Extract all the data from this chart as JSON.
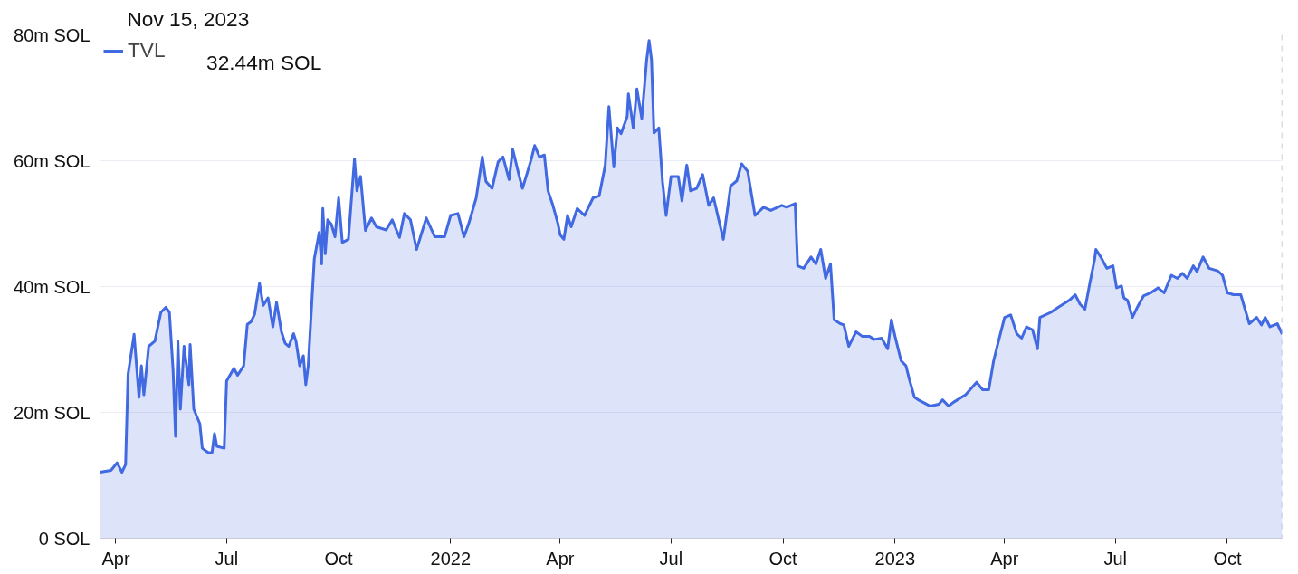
{
  "chart_data": {
    "type": "area",
    "annotations": [
      "Nov 15, 2023",
      "32.44m SOL"
    ],
    "x": [
      "2021-03-19",
      "2021-03-28",
      "2021-04-02",
      "2021-04-06",
      "2021-04-09",
      "2021-04-11",
      "2021-04-16",
      "2021-04-20",
      "2021-04-22",
      "2021-04-24",
      "2021-04-28",
      "2021-05-03",
      "2021-05-08",
      "2021-05-12",
      "2021-05-15",
      "2021-05-18",
      "2021-05-20",
      "2021-05-22",
      "2021-05-24",
      "2021-05-27",
      "2021-05-31",
      "2021-06-01",
      "2021-06-04",
      "2021-06-09",
      "2021-06-11",
      "2021-06-16",
      "2021-06-19",
      "2021-06-21",
      "2021-06-23",
      "2021-06-29",
      "2021-07-01",
      "2021-07-07",
      "2021-07-10",
      "2021-07-15",
      "2021-07-18",
      "2021-07-21",
      "2021-07-24",
      "2021-07-28",
      "2021-07-31",
      "2021-08-04",
      "2021-08-08",
      "2021-08-11",
      "2021-08-15",
      "2021-08-18",
      "2021-08-21",
      "2021-08-25",
      "2021-08-27",
      "2021-08-30",
      "2021-09-02",
      "2021-09-04",
      "2021-09-06",
      "2021-09-11",
      "2021-09-15",
      "2021-09-17",
      "2021-09-18",
      "2021-09-20",
      "2021-09-22",
      "2021-09-25",
      "2021-09-28",
      "2021-10-01",
      "2021-10-04",
      "2021-10-09",
      "2021-10-14",
      "2021-10-16",
      "2021-10-19",
      "2021-10-23",
      "2021-10-28",
      "2021-11-01",
      "2021-11-09",
      "2021-11-14",
      "2021-11-20",
      "2021-11-24",
      "2021-11-29",
      "2021-12-04",
      "2021-12-12",
      "2021-12-19",
      "2021-12-27",
      "2022-01-01",
      "2022-01-07",
      "2022-01-12",
      "2022-01-16",
      "2022-01-22",
      "2022-01-27",
      "2022-01-30",
      "2022-02-04",
      "2022-02-09",
      "2022-02-13",
      "2022-02-18",
      "2022-02-21",
      "2022-02-26",
      "2022-03-01",
      "2022-03-04",
      "2022-03-08",
      "2022-03-11",
      "2022-03-15",
      "2022-03-19",
      "2022-03-22",
      "2022-03-26",
      "2022-03-30",
      "2022-04-01",
      "2022-04-04",
      "2022-04-07",
      "2022-04-10",
      "2022-04-15",
      "2022-04-21",
      "2022-04-28",
      "2022-05-03",
      "2022-05-08",
      "2022-05-11",
      "2022-05-15",
      "2022-05-18",
      "2022-05-21",
      "2022-05-26",
      "2022-05-27",
      "2022-05-31",
      "2022-06-03",
      "2022-06-07",
      "2022-06-11",
      "2022-06-13",
      "2022-06-15",
      "2022-06-17",
      "2022-06-21",
      "2022-06-24",
      "2022-06-27",
      "2022-07-01",
      "2022-07-07",
      "2022-07-10",
      "2022-07-14",
      "2022-07-17",
      "2022-07-22",
      "2022-07-27",
      "2022-08-01",
      "2022-08-05",
      "2022-08-13",
      "2022-08-19",
      "2022-08-24",
      "2022-08-28",
      "2022-09-02",
      "2022-09-08",
      "2022-09-15",
      "2022-09-21",
      "2022-09-30",
      "2022-10-04",
      "2022-10-11",
      "2022-10-13",
      "2022-10-18",
      "2022-10-24",
      "2022-10-28",
      "2022-11-01",
      "2022-11-05",
      "2022-11-09",
      "2022-11-12",
      "2022-11-17",
      "2022-11-20",
      "2022-11-24",
      "2022-11-30",
      "2022-12-05",
      "2022-12-11",
      "2022-12-15",
      "2022-12-21",
      "2022-12-26",
      "2022-12-29",
      "2023-01-01",
      "2023-01-06",
      "2023-01-10",
      "2023-01-13",
      "2023-01-17",
      "2023-01-20",
      "2023-01-24",
      "2023-01-30",
      "2023-02-06",
      "2023-02-09",
      "2023-02-14",
      "2023-02-18",
      "2023-02-28",
      "2023-03-09",
      "2023-03-14",
      "2023-03-19",
      "2023-03-23",
      "2023-03-27",
      "2023-04-01",
      "2023-04-06",
      "2023-04-11",
      "2023-04-15",
      "2023-04-19",
      "2023-04-24",
      "2023-04-28",
      "2023-04-30",
      "2023-05-09",
      "2023-05-15",
      "2023-05-24",
      "2023-05-29",
      "2023-06-02",
      "2023-06-06",
      "2023-06-10",
      "2023-06-14",
      "2023-06-15",
      "2023-06-19",
      "2023-06-24",
      "2023-06-29",
      "2023-07-02",
      "2023-07-06",
      "2023-07-08",
      "2023-07-11",
      "2023-07-15",
      "2023-07-19",
      "2023-07-24",
      "2023-07-30",
      "2023-08-05",
      "2023-08-10",
      "2023-08-16",
      "2023-08-21",
      "2023-08-25",
      "2023-08-29",
      "2023-09-03",
      "2023-09-06",
      "2023-09-11",
      "2023-09-16",
      "2023-09-23",
      "2023-09-27",
      "2023-10-01",
      "2023-10-06",
      "2023-10-12",
      "2023-10-15",
      "2023-10-19",
      "2023-10-25",
      "2023-10-29",
      "2023-11-01",
      "2023-11-05",
      "2023-11-11",
      "2023-11-15"
    ],
    "series": [
      {
        "name": "TVL",
        "color": "#4169e1",
        "values": [
          10.5,
          10.8,
          12,
          10.5,
          11.7,
          26,
          32.4,
          22.4,
          27.4,
          22.8,
          30.5,
          31.3,
          35.9,
          36.7,
          35.9,
          26.7,
          16.2,
          31.3,
          20.5,
          30.5,
          24.4,
          30.8,
          20.5,
          18.2,
          14.3,
          13.6,
          13.6,
          16.6,
          14.6,
          14.3,
          25,
          27,
          25.9,
          27.4,
          34,
          34.4,
          35.6,
          40.5,
          37,
          38.2,
          33.6,
          37.5,
          32.8,
          31,
          30.5,
          32.5,
          31.3,
          27.4,
          29,
          24.4,
          27.4,
          44.4,
          48.6,
          43.6,
          52.4,
          45.2,
          50.6,
          49.9,
          47.9,
          54.1,
          47,
          47.5,
          60.3,
          55.2,
          57.5,
          48.9,
          50.9,
          49.5,
          49,
          50.6,
          47.8,
          51.6,
          50.6,
          45.9,
          50.9,
          47.9,
          47.9,
          51.3,
          51.6,
          47.9,
          50.1,
          54.1,
          60.6,
          56.7,
          55.6,
          59.8,
          60.6,
          57,
          61.8,
          57.8,
          55.6,
          57.5,
          60.1,
          62.4,
          60.6,
          60.9,
          55.2,
          52.9,
          50.1,
          48.2,
          47.5,
          51.3,
          49.5,
          52.4,
          51.3,
          54.1,
          54.4,
          59.3,
          68.6,
          59,
          65.2,
          64.3,
          67,
          70.6,
          65.2,
          71.4,
          66.7,
          76,
          79.1,
          76,
          64.4,
          65.2,
          56.7,
          51.3,
          57.5,
          57.5,
          53.6,
          59.3,
          55.2,
          55.6,
          57.8,
          52.9,
          54.1,
          47.5,
          56,
          56.8,
          59.5,
          58.3,
          51.3,
          52.6,
          52.1,
          52.9,
          52.6,
          53.2,
          43.3,
          42.9,
          44.7,
          43.6,
          45.9,
          41.3,
          43.6,
          34.7,
          34.1,
          33.9,
          30.5,
          32.8,
          32.1,
          32.1,
          31.6,
          31.8,
          30.1,
          34.7,
          32.1,
          28.2,
          27.4,
          25.1,
          22.4,
          22,
          21.6,
          21,
          21.3,
          22,
          21,
          21.6,
          22.8,
          24.8,
          23.6,
          23.6,
          28.2,
          31.3,
          35.1,
          35.5,
          32.5,
          31.8,
          33.6,
          33.1,
          30.1,
          35.1,
          35.9,
          36.7,
          37.8,
          38.7,
          37.2,
          36.4,
          40.5,
          44.4,
          45.9,
          44.7,
          42.9,
          43.3,
          39.8,
          40.1,
          38.2,
          37.8,
          35.1,
          36.7,
          38.5,
          39,
          39.8,
          39,
          41.8,
          41.3,
          42.1,
          41.3,
          43.3,
          42.4,
          44.7,
          42.9,
          42.5,
          41.8,
          39,
          38.7,
          38.7,
          36.7,
          34.1,
          35.1,
          33.9,
          35.1,
          33.6,
          34.1,
          32.44
        ]
      }
    ],
    "xlim": [
      "2021-03-19",
      "2023-11-15"
    ],
    "xticks": [
      {
        "value": "2021-04-01",
        "label": "Apr"
      },
      {
        "value": "2021-07-01",
        "label": "Jul"
      },
      {
        "value": "2021-10-01",
        "label": "Oct"
      },
      {
        "value": "2022-01-01",
        "label": "2022"
      },
      {
        "value": "2022-04-01",
        "label": "Apr"
      },
      {
        "value": "2022-07-01",
        "label": "Jul"
      },
      {
        "value": "2022-10-01",
        "label": "Oct"
      },
      {
        "value": "2023-01-01",
        "label": "2023"
      },
      {
        "value": "2023-04-01",
        "label": "Apr"
      },
      {
        "value": "2023-07-01",
        "label": "Jul"
      },
      {
        "value": "2023-10-01",
        "label": "Oct"
      }
    ],
    "ylim": [
      0,
      80
    ],
    "yticks": [
      {
        "value": 0,
        "label": "0 SOL"
      },
      {
        "value": 20,
        "label": "20m SOL"
      },
      {
        "value": 40,
        "label": "40m SOL"
      },
      {
        "value": 60,
        "label": "60m SOL"
      },
      {
        "value": 80,
        "label": "80m SOL"
      }
    ],
    "ref_lines": [
      {
        "axis": "x",
        "value": "2023-11-15",
        "color": "#b4b8cc",
        "line_style": "dashed"
      }
    ],
    "grid": "y",
    "legend": "top left"
  }
}
